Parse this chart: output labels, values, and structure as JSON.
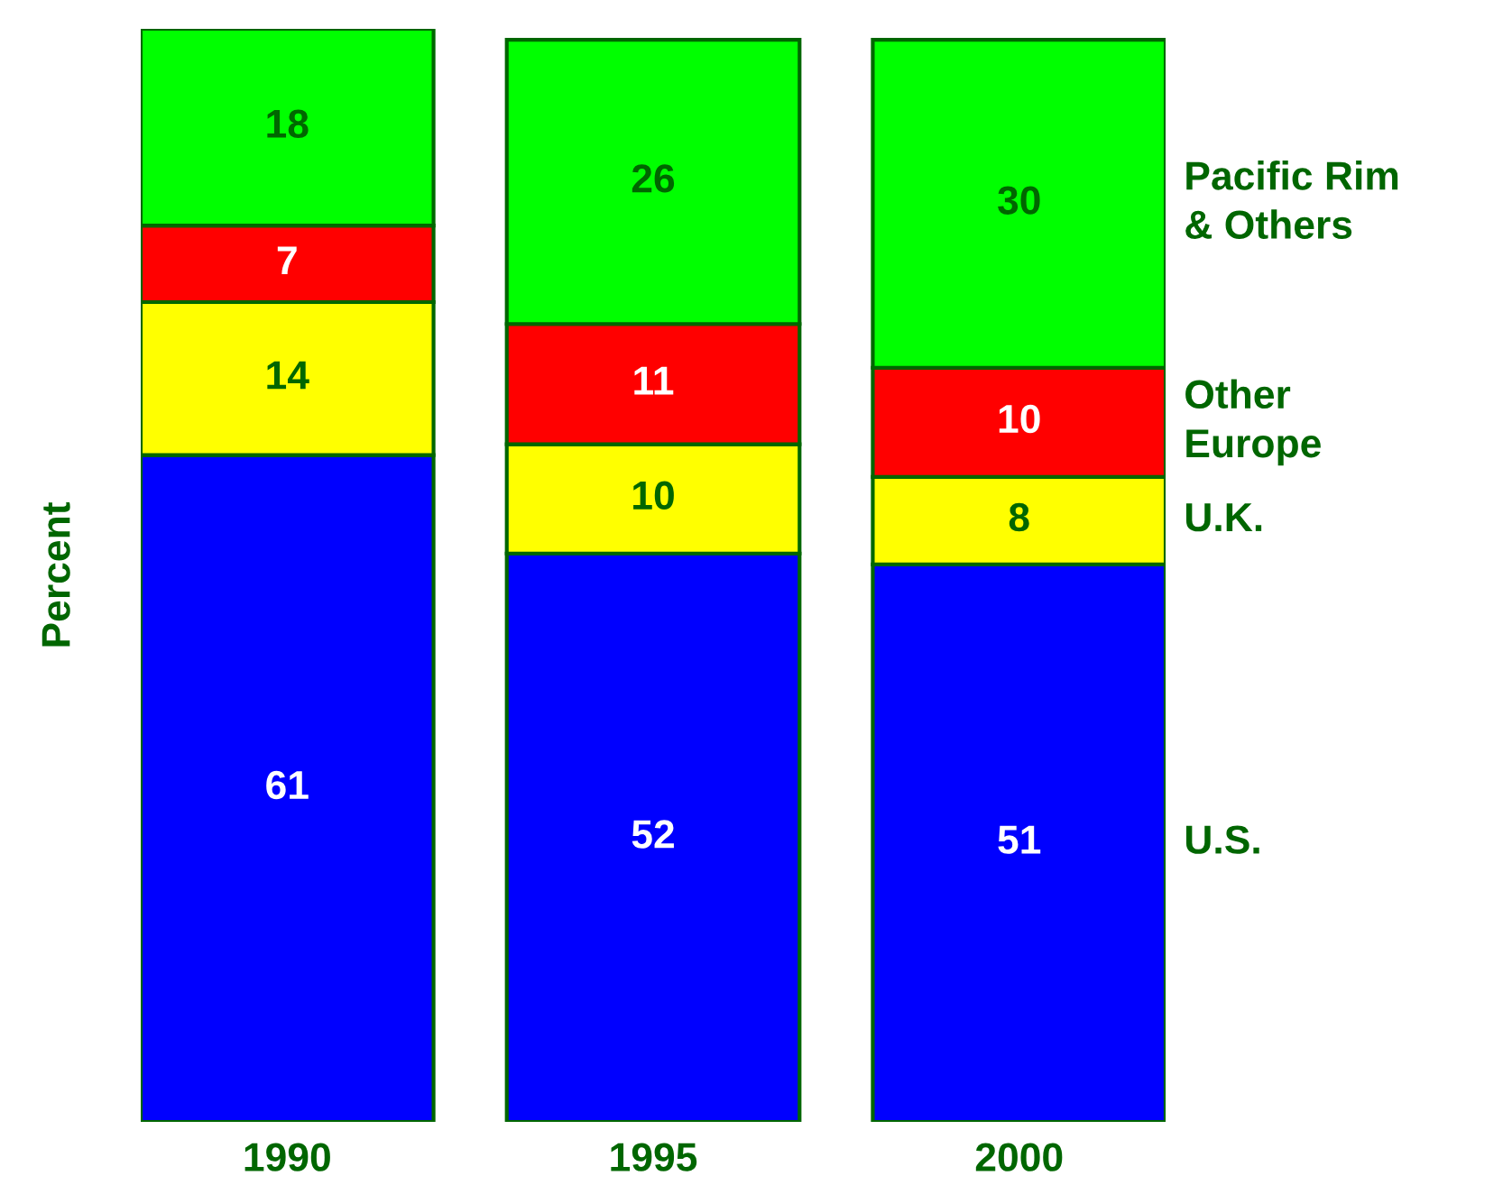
{
  "chart_data": {
    "type": "bar",
    "stacked": true,
    "ylabel": "Percent",
    "categories": [
      "1990",
      "1995",
      "2000"
    ],
    "data_labels": true,
    "legend": false,
    "grid": false,
    "series": [
      {
        "name": "U.S.",
        "color": "#0000ff",
        "values": [
          61,
          52,
          51
        ]
      },
      {
        "name": "U.K.",
        "color": "#ffff00",
        "values": [
          14,
          10,
          8
        ]
      },
      {
        "name": "Other\nEurope",
        "color": "#ff0000",
        "values": [
          7,
          11,
          10
        ]
      },
      {
        "name": "Pacific Rim\n& Others",
        "color": "#00ff00",
        "values": [
          18,
          26,
          30
        ]
      }
    ]
  }
}
